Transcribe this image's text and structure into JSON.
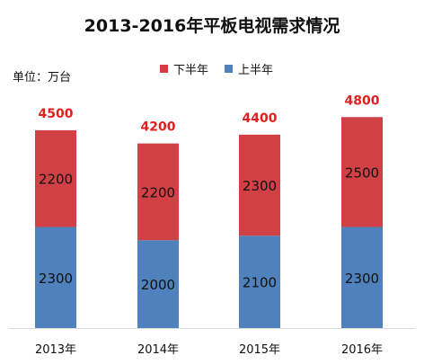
{
  "chart_data": {
    "type": "bar",
    "stacked": true,
    "title": "2013-2016年平板电视需求情况",
    "unit_label": "单位：万台",
    "categories": [
      "2013年",
      "2014年",
      "2015年",
      "2016年"
    ],
    "series": [
      {
        "name": "上半年",
        "color": "#4F81BD",
        "values": [
          2300,
          2000,
          2100,
          2300
        ]
      },
      {
        "name": "下半年",
        "color": "#D04045",
        "values": [
          2200,
          2200,
          2300,
          2500
        ]
      }
    ],
    "totals": [
      "4500",
      "4200",
      "4400",
      "4800"
    ],
    "total_label_color": "#E02020",
    "legend_order": [
      "下半年",
      "上半年"
    ],
    "legend_position": "top-center",
    "ylim": [
      0,
      5000
    ],
    "grid": false
  }
}
